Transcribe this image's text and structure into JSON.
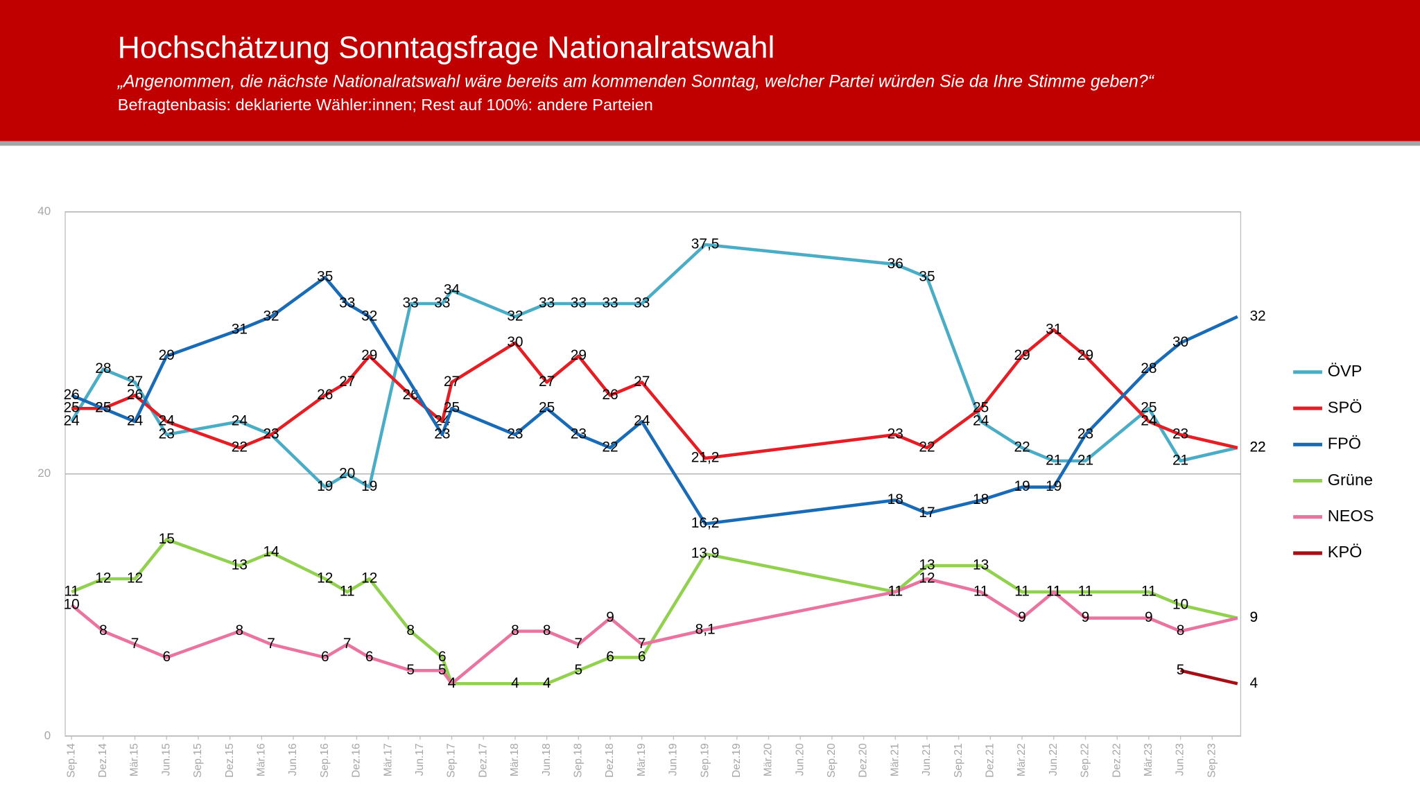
{
  "chart_data": {
    "type": "line",
    "title": "Hochschätzung Sonntagsfrage Nationalratswahl",
    "subtitle": "„Angenommen, die nächste Nationalratswahl wäre bereits am kommenden Sonntag, welcher Partei würden Sie da Ihre Stimme geben?“",
    "note": "Befragtenbasis: deklarierte Wähler:innen; Rest auf 100%: andere Parteien",
    "xlim": [
      -0.2,
      36.9
    ],
    "xticks": [
      {
        "value": 0,
        "label": "Sep.14"
      },
      {
        "value": 1,
        "label": "Dez.14"
      },
      {
        "value": 2,
        "label": "Mär.15"
      },
      {
        "value": 3,
        "label": "Jun.15"
      },
      {
        "value": 4,
        "label": "Sep.15"
      },
      {
        "value": 5,
        "label": "Dez.15"
      },
      {
        "value": 6,
        "label": "Mär.16"
      },
      {
        "value": 7,
        "label": "Jun.16"
      },
      {
        "value": 8,
        "label": "Sep.16"
      },
      {
        "value": 9,
        "label": "Dez.16"
      },
      {
        "value": 10,
        "label": "Mär.17"
      },
      {
        "value": 11,
        "label": "Jun.17"
      },
      {
        "value": 12,
        "label": "Sep.17"
      },
      {
        "value": 13,
        "label": "Dez.17"
      },
      {
        "value": 14,
        "label": "Mär.18"
      },
      {
        "value": 15,
        "label": "Jun.18"
      },
      {
        "value": 16,
        "label": "Sep.18"
      },
      {
        "value": 17,
        "label": "Dez.18"
      },
      {
        "value": 18,
        "label": "Mär.19"
      },
      {
        "value": 19,
        "label": "Jun.19"
      },
      {
        "value": 20,
        "label": "Sep.19"
      },
      {
        "value": 21,
        "label": "Dez.19"
      },
      {
        "value": 22,
        "label": "Mär.20"
      },
      {
        "value": 23,
        "label": "Jun.20"
      },
      {
        "value": 24,
        "label": "Sep.20"
      },
      {
        "value": 25,
        "label": "Dez.20"
      },
      {
        "value": 26,
        "label": "Mär.21"
      },
      {
        "value": 27,
        "label": "Jun.21"
      },
      {
        "value": 28,
        "label": "Sep.21"
      },
      {
        "value": 29,
        "label": "Dez.21"
      },
      {
        "value": 30,
        "label": "Mär.22"
      },
      {
        "value": 31,
        "label": "Jun.22"
      },
      {
        "value": 32,
        "label": "Sep.22"
      },
      {
        "value": 33,
        "label": "Dez.22"
      },
      {
        "value": 34,
        "label": "Mär.23"
      },
      {
        "value": 35,
        "label": "Jun.23"
      },
      {
        "value": 36,
        "label": "Sep.23"
      }
    ],
    "ylim": [
      0,
      40
    ],
    "yticks": [
      0,
      20,
      40
    ],
    "series": [
      {
        "name": "ÖVP",
        "color": "#4bacc6",
        "x": [
          0,
          1,
          2,
          3,
          5.3,
          6.3,
          8,
          8.7,
          9.4,
          10.7,
          11.7,
          12,
          14,
          15,
          16,
          17,
          18,
          20,
          26,
          27,
          28.7,
          30,
          31,
          32,
          34,
          35,
          36.8
        ],
        "values": [
          24,
          28,
          27,
          23,
          24,
          23,
          19,
          20,
          19,
          33,
          33,
          34,
          32,
          33,
          33,
          33,
          33,
          37.5,
          36,
          35,
          24,
          22,
          21,
          21,
          25,
          21,
          22
        ],
        "value_labels": [
          "24",
          "28",
          "27",
          "23",
          "24",
          "23",
          "19",
          "20",
          "19",
          "33",
          "33",
          "34",
          "32",
          "33",
          "33",
          "33",
          "33",
          "37,5",
          "36",
          "35",
          "24",
          "22",
          "21",
          "21",
          "25",
          "21",
          "22"
        ]
      },
      {
        "name": "SPÖ",
        "color": "#e31e24",
        "x": [
          0,
          1,
          2,
          3,
          5.3,
          6.3,
          8,
          8.7,
          9.4,
          10.7,
          11.7,
          12,
          14,
          15,
          16,
          17,
          18,
          20,
          26,
          27,
          28.7,
          30,
          31,
          32,
          34,
          35,
          36.8
        ],
        "values": [
          25,
          25,
          26,
          24,
          22,
          23,
          26,
          27,
          29,
          26,
          24,
          27,
          30,
          27,
          29,
          26,
          27,
          21.2,
          23,
          22,
          25,
          29,
          31,
          29,
          24,
          23,
          22
        ],
        "value_labels": [
          "25",
          "25",
          "26",
          "24",
          "22",
          "23",
          "26",
          "27",
          "29",
          "26",
          "24",
          "27",
          "30",
          "27",
          "29",
          "26",
          "27",
          "21,2",
          "23",
          "22",
          "25",
          "29",
          "31",
          "29",
          "24",
          "23",
          "22"
        ]
      },
      {
        "name": "FPÖ",
        "color": "#1a6bb5",
        "x": [
          0,
          1,
          2,
          3,
          5.3,
          6.3,
          8,
          8.7,
          9.4,
          11.7,
          12,
          14,
          15,
          16,
          17,
          18,
          20,
          26,
          27,
          28.7,
          30,
          31,
          32,
          34,
          35,
          36.8
        ],
        "values": [
          26,
          25,
          24,
          29,
          31,
          32,
          35,
          33,
          32,
          23,
          25,
          23,
          25,
          23,
          22,
          24,
          16.2,
          18,
          17,
          18,
          19,
          19,
          23,
          28,
          30,
          32
        ],
        "value_labels": [
          "26",
          "25",
          "24",
          "29",
          "31",
          "32",
          "35",
          "33",
          "32",
          "23",
          "25",
          "23",
          "25",
          "23",
          "22",
          "24",
          "16,2",
          "18",
          "17",
          "18",
          "19",
          "19",
          "23",
          "28",
          "30",
          "32"
        ]
      },
      {
        "name": "Grüne",
        "color": "#92d050",
        "x": [
          0,
          1,
          2,
          3,
          5.3,
          6.3,
          8,
          8.7,
          9.4,
          10.7,
          11.7,
          12,
          14,
          15,
          16,
          17,
          18,
          20,
          26,
          27,
          28.7,
          30,
          31,
          32,
          34,
          35,
          36.8
        ],
        "values": [
          11,
          12,
          12,
          15,
          13,
          14,
          12,
          11,
          12,
          8,
          6,
          4,
          4,
          4,
          5,
          6,
          6,
          13.9,
          11,
          13,
          13,
          11,
          11,
          11,
          11,
          10,
          9
        ],
        "value_labels": [
          "11",
          "12",
          "12",
          "15",
          "13",
          "14",
          "12",
          "11",
          "12",
          "8",
          "6",
          "4",
          "4",
          "4",
          "5",
          "6",
          "6",
          "13,9",
          "11",
          "13",
          "13",
          "11",
          "11",
          "11",
          "11",
          "10",
          "9"
        ]
      },
      {
        "name": "NEOS",
        "color": "#e8749f",
        "x": [
          0,
          1,
          2,
          3,
          5.3,
          6.3,
          8,
          8.7,
          9.4,
          10.7,
          11.7,
          12,
          14,
          15,
          16,
          17,
          18,
          20,
          26,
          27,
          28.7,
          30,
          31,
          32,
          34,
          35,
          36.8
        ],
        "values": [
          10,
          8,
          7,
          6,
          8,
          7,
          6,
          7,
          6,
          5,
          5,
          4,
          8,
          8,
          7,
          9,
          7,
          8.1,
          11,
          12,
          11,
          9,
          11,
          9,
          9,
          8,
          9
        ],
        "value_labels": [
          "10",
          "8",
          "7",
          "6",
          "8",
          "7",
          "6",
          "7",
          "6",
          "5",
          "5",
          "4",
          "8",
          "8",
          "7",
          "9",
          "7",
          "8,1",
          "11",
          "12",
          "11",
          "9",
          "11",
          "9",
          "9",
          "8",
          "9"
        ]
      },
      {
        "name": "KPÖ",
        "color": "#a50f15",
        "x": [
          35,
          36.8
        ],
        "values": [
          5,
          4
        ]
      }
    ]
  }
}
